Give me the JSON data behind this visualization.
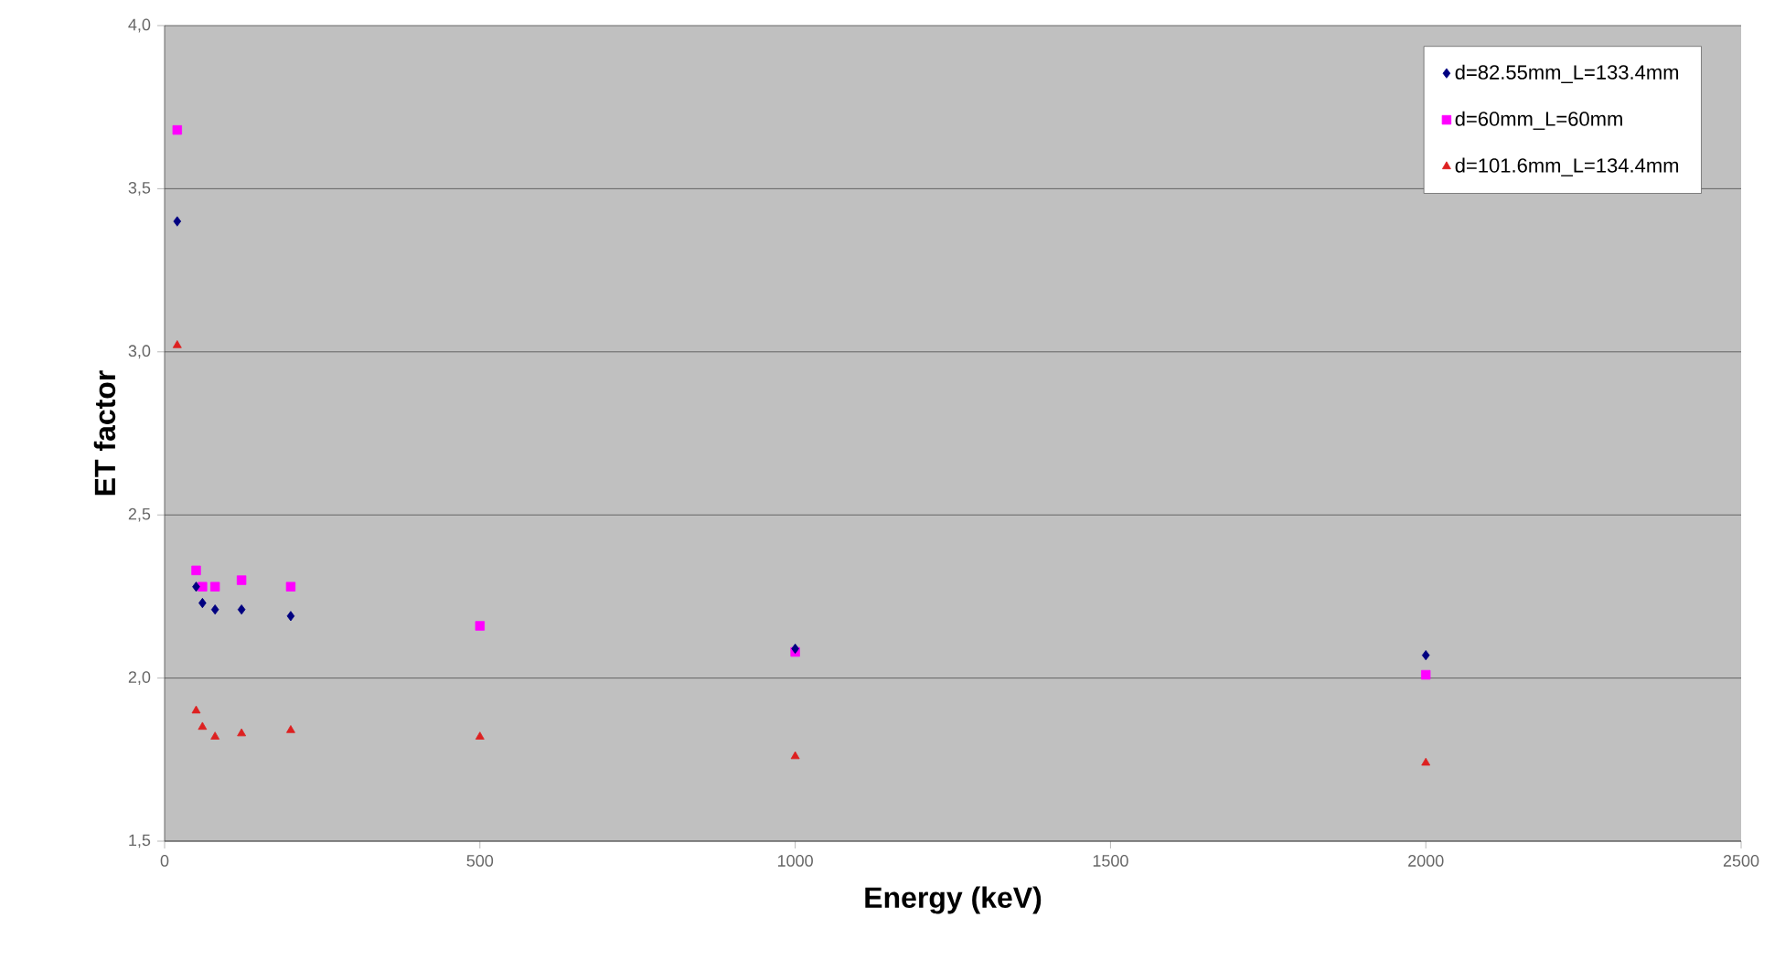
{
  "chart_data": {
    "type": "scatter",
    "xlabel": "Energy (keV)",
    "ylabel": "ET factor",
    "x": [
      20,
      50,
      60,
      80,
      122,
      200,
      500,
      1000,
      2000
    ],
    "series": [
      {
        "name": "d=82.55mm_L=133.4mm",
        "color": "#000080",
        "marker": "diamond",
        "values": [
          3.4,
          2.28,
          2.23,
          2.21,
          2.21,
          2.19,
          null,
          2.09,
          2.07
        ]
      },
      {
        "name": "d=60mm_L=60mm",
        "color": "#ff00ff",
        "marker": "square",
        "values": [
          3.68,
          2.33,
          2.28,
          2.28,
          2.3,
          2.28,
          2.16,
          2.08,
          2.01
        ]
      },
      {
        "name": "d=101.6mm_L=134.4mm",
        "color": "#dd2020",
        "marker": "triangle",
        "values": [
          3.02,
          1.9,
          1.85,
          1.82,
          1.83,
          1.84,
          1.82,
          1.76,
          1.74
        ]
      }
    ],
    "xlim": [
      0,
      2500
    ],
    "xticks": [
      0,
      500,
      1000,
      1500,
      2000,
      2500
    ],
    "ylim": [
      1.5,
      4.0
    ],
    "yticks": [
      {
        "value": 1.5,
        "label": "1,5"
      },
      {
        "value": 2.0,
        "label": "2,0"
      },
      {
        "value": 2.5,
        "label": "2,5"
      },
      {
        "value": 3.0,
        "label": "3,0"
      },
      {
        "value": 3.5,
        "label": "3,5"
      },
      {
        "value": 4.0,
        "label": "4,0"
      }
    ],
    "grid": "y",
    "legend": "top right"
  }
}
